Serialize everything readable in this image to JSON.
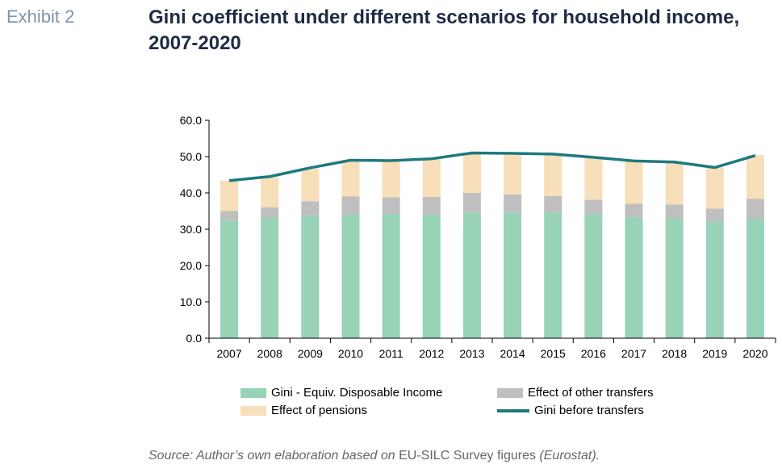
{
  "header": {
    "exhibit": "Exhibit 2",
    "title": "Gini coefficient under different scenarios for household income, 2007-2020"
  },
  "source": {
    "prefix": "Source: Author’s own elaboration based on",
    "middle": " EU-SILC Survey figures ",
    "suffix": "(Eurostat)."
  },
  "colors": {
    "disposable": "#98d2b7",
    "other_transfers": "#bfbfbf",
    "pensions": "#f6dfb9",
    "before_transfers": "#1d7a80"
  },
  "chart_data": {
    "type": "bar",
    "stacked": true,
    "categories": [
      "2007",
      "2008",
      "2009",
      "2010",
      "2011",
      "2012",
      "2013",
      "2014",
      "2015",
      "2016",
      "2017",
      "2018",
      "2019",
      "2020"
    ],
    "ylim": [
      0,
      60
    ],
    "yticks": [
      "0.0",
      "10.0",
      "20.0",
      "30.0",
      "40.0",
      "50.0",
      "60.0"
    ],
    "series": [
      {
        "name": "Gini - Equiv. Disposable Income",
        "kind": "bar",
        "values": [
          32.4,
          33.0,
          33.7,
          34.0,
          34.2,
          33.9,
          34.6,
          34.6,
          34.6,
          34.1,
          33.2,
          33.0,
          32.1,
          33.0
        ]
      },
      {
        "name": "Effect of other transfers",
        "kind": "bar",
        "values": [
          2.6,
          3.0,
          4.0,
          5.0,
          4.6,
          5.0,
          5.4,
          5.0,
          4.5,
          4.0,
          3.8,
          3.8,
          3.6,
          5.4
        ]
      },
      {
        "name": "Effect of pensions",
        "kind": "bar",
        "values": [
          8.4,
          8.3,
          9.0,
          10.1,
          10.2,
          10.4,
          11.0,
          11.3,
          11.6,
          11.6,
          11.8,
          11.8,
          11.3,
          12.0
        ]
      },
      {
        "name": "Gini before transfers",
        "kind": "line",
        "values": [
          43.4,
          44.5,
          46.9,
          49.0,
          48.9,
          49.4,
          51.0,
          50.9,
          50.7,
          49.8,
          48.8,
          48.5,
          47.0,
          50.3
        ]
      }
    ],
    "legend": "bottom"
  }
}
